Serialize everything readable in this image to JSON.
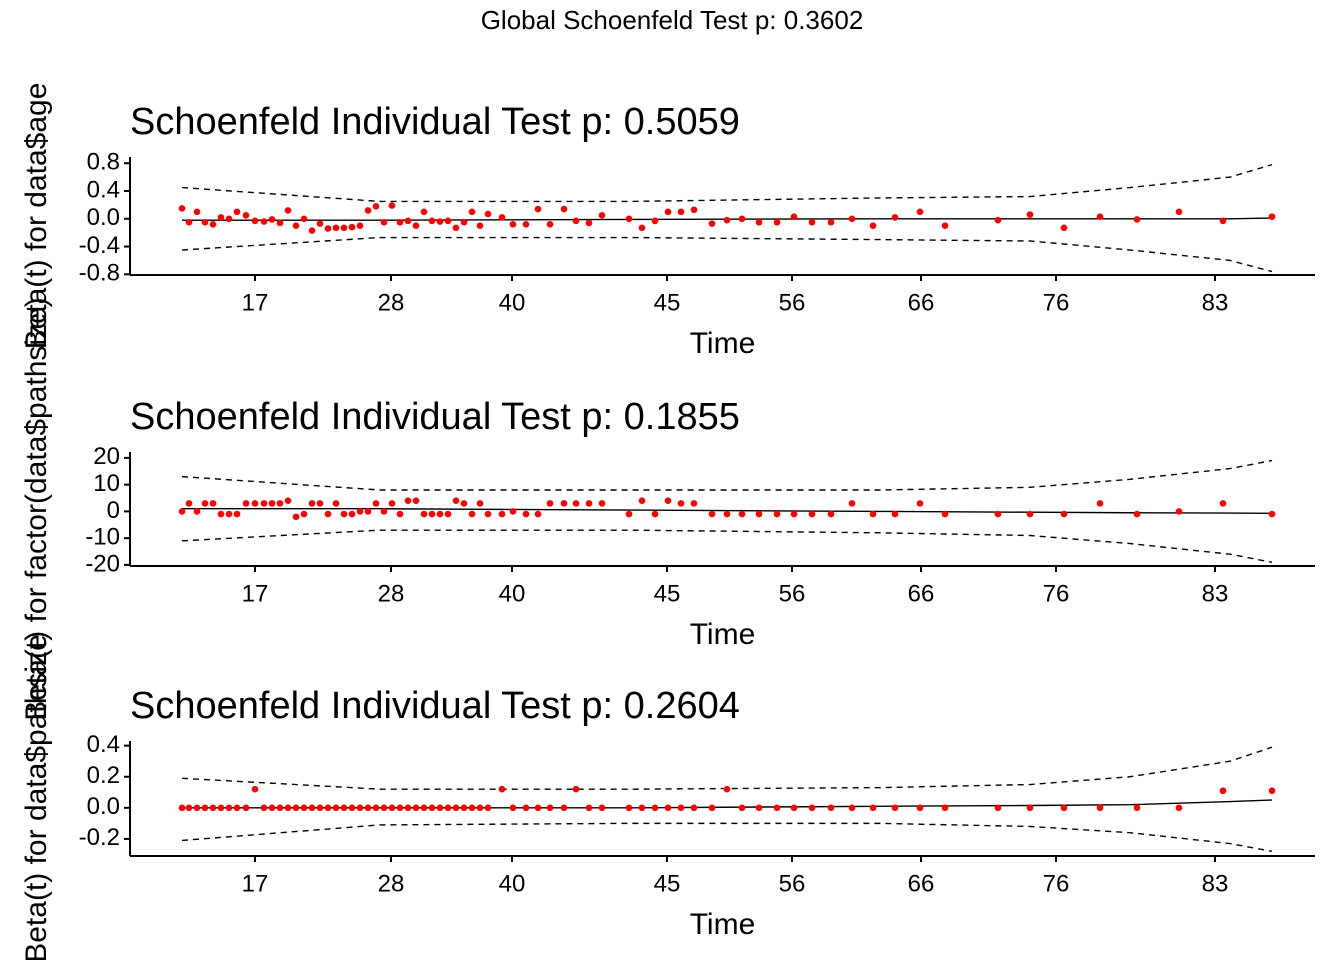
{
  "title": "Global Schoenfeld Test p: 0.3602",
  "chart_data": [
    {
      "type": "scatter",
      "title": "Schoenfeld Individual Test p: 0.5059",
      "x_label": "Time",
      "y_label": "Beta(t) for data$age",
      "color": "#ff0000",
      "xlim": [
        0,
        1185
      ],
      "xticks": [
        {
          "value": 125,
          "label": "17"
        },
        {
          "value": 261,
          "label": "28"
        },
        {
          "value": 382,
          "label": "40"
        },
        {
          "value": 537,
          "label": "45"
        },
        {
          "value": 662,
          "label": "56"
        },
        {
          "value": 791,
          "label": "66"
        },
        {
          "value": 926,
          "label": "76"
        },
        {
          "value": 1085,
          "label": "83"
        }
      ],
      "ylim": [
        -0.81,
        0.89
      ],
      "yticks": [
        -0.8,
        -0.4,
        {
          "value": 0,
          "label": "0.0"
        },
        0.4,
        0.8
      ],
      "x": [
        52,
        59,
        67,
        75,
        83,
        91,
        99,
        107,
        116,
        125,
        134,
        142,
        150,
        158,
        166,
        174,
        182,
        190,
        198,
        206,
        214,
        222,
        230,
        238,
        246,
        254,
        262,
        270,
        278,
        286,
        294,
        302,
        310,
        318,
        326,
        334,
        342,
        350,
        358,
        372,
        383,
        396,
        408,
        420,
        434,
        446,
        459,
        472,
        499,
        512,
        525,
        538,
        551,
        564,
        582,
        597,
        612,
        629,
        647,
        664,
        682,
        701,
        722,
        743,
        765,
        790,
        815,
        868,
        900,
        934,
        970,
        1007,
        1049,
        1093,
        1142
      ],
      "values": [
        0.15,
        -0.05,
        0.1,
        -0.05,
        -0.08,
        0.02,
        0.0,
        0.1,
        0.05,
        -0.03,
        -0.04,
        -0.01,
        -0.06,
        0.12,
        -0.1,
        0.0,
        -0.17,
        -0.07,
        -0.14,
        -0.13,
        -0.13,
        -0.12,
        -0.1,
        0.12,
        0.18,
        -0.05,
        0.19,
        -0.05,
        -0.03,
        -0.1,
        0.1,
        -0.03,
        -0.04,
        -0.03,
        -0.13,
        -0.05,
        0.1,
        -0.1,
        0.07,
        0.02,
        -0.08,
        -0.08,
        0.14,
        -0.08,
        0.14,
        -0.03,
        -0.06,
        0.05,
        0.0,
        -0.13,
        -0.03,
        0.1,
        0.1,
        0.13,
        -0.07,
        -0.02,
        0.0,
        -0.05,
        -0.05,
        0.03,
        -0.05,
        -0.05,
        0.0,
        -0.1,
        0.02,
        0.1,
        -0.1,
        -0.02,
        0.06,
        -0.13,
        0.03,
        -0.01,
        0.1,
        -0.03,
        0.03
      ],
      "smooth": {
        "x": [
          52,
          250,
          500,
          750,
          900,
          1000,
          1100,
          1142
        ],
        "fit": [
          -0.02,
          -0.02,
          -0.01,
          0,
          0,
          0,
          0,
          0.01
        ],
        "upper": [
          0.45,
          0.25,
          0.25,
          0.3,
          0.32,
          0.45,
          0.6,
          0.78
        ],
        "lower": [
          -0.45,
          -0.27,
          -0.27,
          -0.3,
          -0.32,
          -0.45,
          -0.6,
          -0.76
        ]
      }
    },
    {
      "type": "scatter",
      "title": "Schoenfeld Individual Test p: 0.1855",
      "x_label": "Time",
      "y_label": "Beta(t) for factor(data$pathsize)",
      "color": "#ff0000",
      "xlim": [
        0,
        1185
      ],
      "xticks": [
        {
          "value": 125,
          "label": "17"
        },
        {
          "value": 261,
          "label": "28"
        },
        {
          "value": 382,
          "label": "40"
        },
        {
          "value": 537,
          "label": "45"
        },
        {
          "value": 662,
          "label": "56"
        },
        {
          "value": 791,
          "label": "66"
        },
        {
          "value": 926,
          "label": "76"
        },
        {
          "value": 1085,
          "label": "83"
        }
      ],
      "ylim": [
        -20.4,
        22.2
      ],
      "yticks": [
        -20,
        -10,
        0,
        10,
        20
      ],
      "x": [
        52,
        59,
        67,
        75,
        83,
        91,
        99,
        107,
        116,
        125,
        134,
        142,
        150,
        158,
        166,
        174,
        182,
        190,
        198,
        206,
        214,
        222,
        230,
        238,
        246,
        254,
        262,
        270,
        278,
        286,
        294,
        302,
        310,
        318,
        326,
        334,
        342,
        350,
        358,
        372,
        383,
        396,
        408,
        420,
        434,
        446,
        459,
        472,
        499,
        512,
        525,
        538,
        551,
        564,
        582,
        597,
        612,
        629,
        647,
        664,
        682,
        701,
        722,
        743,
        765,
        790,
        815,
        868,
        900,
        934,
        970,
        1007,
        1049,
        1093,
        1142
      ],
      "values": [
        0,
        3,
        0,
        3,
        3,
        -1,
        -1,
        -1,
        3,
        3,
        3,
        3,
        3,
        4,
        -2,
        -1,
        3,
        3,
        -1,
        3,
        -1,
        -1,
        0,
        0,
        3,
        0,
        3,
        -1,
        4,
        4,
        -1,
        -1,
        -1,
        -1,
        4,
        3,
        -1,
        3,
        -1,
        -1,
        0,
        -1,
        -1,
        3,
        3,
        3,
        3,
        3,
        -1,
        4,
        -1,
        4,
        3,
        3,
        -1,
        -1,
        -1,
        -1,
        -1,
        -1,
        -1,
        -1,
        3,
        -1,
        -1,
        3,
        -1,
        -1,
        -1,
        -1,
        3,
        -1,
        0,
        3,
        -1
      ],
      "smooth": {
        "x": [
          52,
          250,
          500,
          750,
          900,
          1000,
          1100,
          1142
        ],
        "fit": [
          1,
          1,
          0.5,
          0,
          -0.3,
          -0.5,
          -0.6,
          -0.7
        ],
        "upper": [
          13,
          8,
          8,
          8,
          9,
          12,
          16,
          19
        ],
        "lower": [
          -11,
          -7,
          -7,
          -8,
          -9,
          -12,
          -16,
          -19
        ]
      }
    },
    {
      "type": "scatter",
      "title": "Schoenfeld Individual Test p: 0.2604",
      "x_label": "Time",
      "y_label": "Beta(t) for data$pathsize",
      "color": "#ff0000",
      "xlim": [
        0,
        1185
      ],
      "xticks": [
        {
          "value": 125,
          "label": "17"
        },
        {
          "value": 261,
          "label": "28"
        },
        {
          "value": 382,
          "label": "40"
        },
        {
          "value": 537,
          "label": "45"
        },
        {
          "value": 662,
          "label": "56"
        },
        {
          "value": 791,
          "label": "66"
        },
        {
          "value": 926,
          "label": "76"
        },
        {
          "value": 1085,
          "label": "83"
        }
      ],
      "ylim": [
        -0.31,
        0.43
      ],
      "yticks": [
        -0.2,
        {
          "value": 0,
          "label": "0.0"
        },
        0.2,
        0.4
      ],
      "x": [
        52,
        59,
        67,
        75,
        83,
        91,
        99,
        107,
        116,
        125,
        134,
        142,
        150,
        158,
        166,
        174,
        182,
        190,
        198,
        206,
        214,
        222,
        230,
        238,
        246,
        254,
        262,
        270,
        278,
        286,
        294,
        302,
        310,
        318,
        326,
        334,
        342,
        350,
        358,
        372,
        383,
        396,
        408,
        420,
        434,
        446,
        459,
        472,
        499,
        512,
        525,
        538,
        551,
        564,
        582,
        597,
        612,
        629,
        647,
        664,
        682,
        701,
        722,
        743,
        765,
        790,
        815,
        868,
        900,
        934,
        970,
        1007,
        1049,
        1093,
        1142
      ],
      "values": [
        0,
        0,
        0,
        0,
        0,
        0,
        0,
        0,
        0,
        0.12,
        0,
        0,
        0,
        0,
        0,
        0,
        0,
        0,
        0,
        0,
        0,
        0,
        0,
        0,
        0,
        0,
        0,
        0,
        0,
        0,
        0,
        0,
        0,
        0,
        0,
        0,
        0,
        0,
        0,
        0.12,
        0,
        0,
        0,
        0,
        0,
        0.12,
        0,
        0,
        0,
        0,
        0,
        0,
        0,
        0,
        0,
        0.12,
        0,
        0,
        0,
        0,
        0,
        0,
        0,
        0,
        0,
        0,
        0,
        0,
        0,
        0,
        0,
        0,
        0,
        0.11,
        0.11
      ],
      "smooth": {
        "x": [
          52,
          250,
          500,
          750,
          900,
          1000,
          1100,
          1142
        ],
        "fit": [
          0,
          0,
          0,
          0.01,
          0.015,
          0.02,
          0.04,
          0.05
        ],
        "upper": [
          0.19,
          0.12,
          0.12,
          0.13,
          0.15,
          0.2,
          0.3,
          0.39
        ],
        "lower": [
          -0.21,
          -0.11,
          -0.1,
          -0.1,
          -0.12,
          -0.16,
          -0.23,
          -0.28
        ]
      }
    }
  ]
}
